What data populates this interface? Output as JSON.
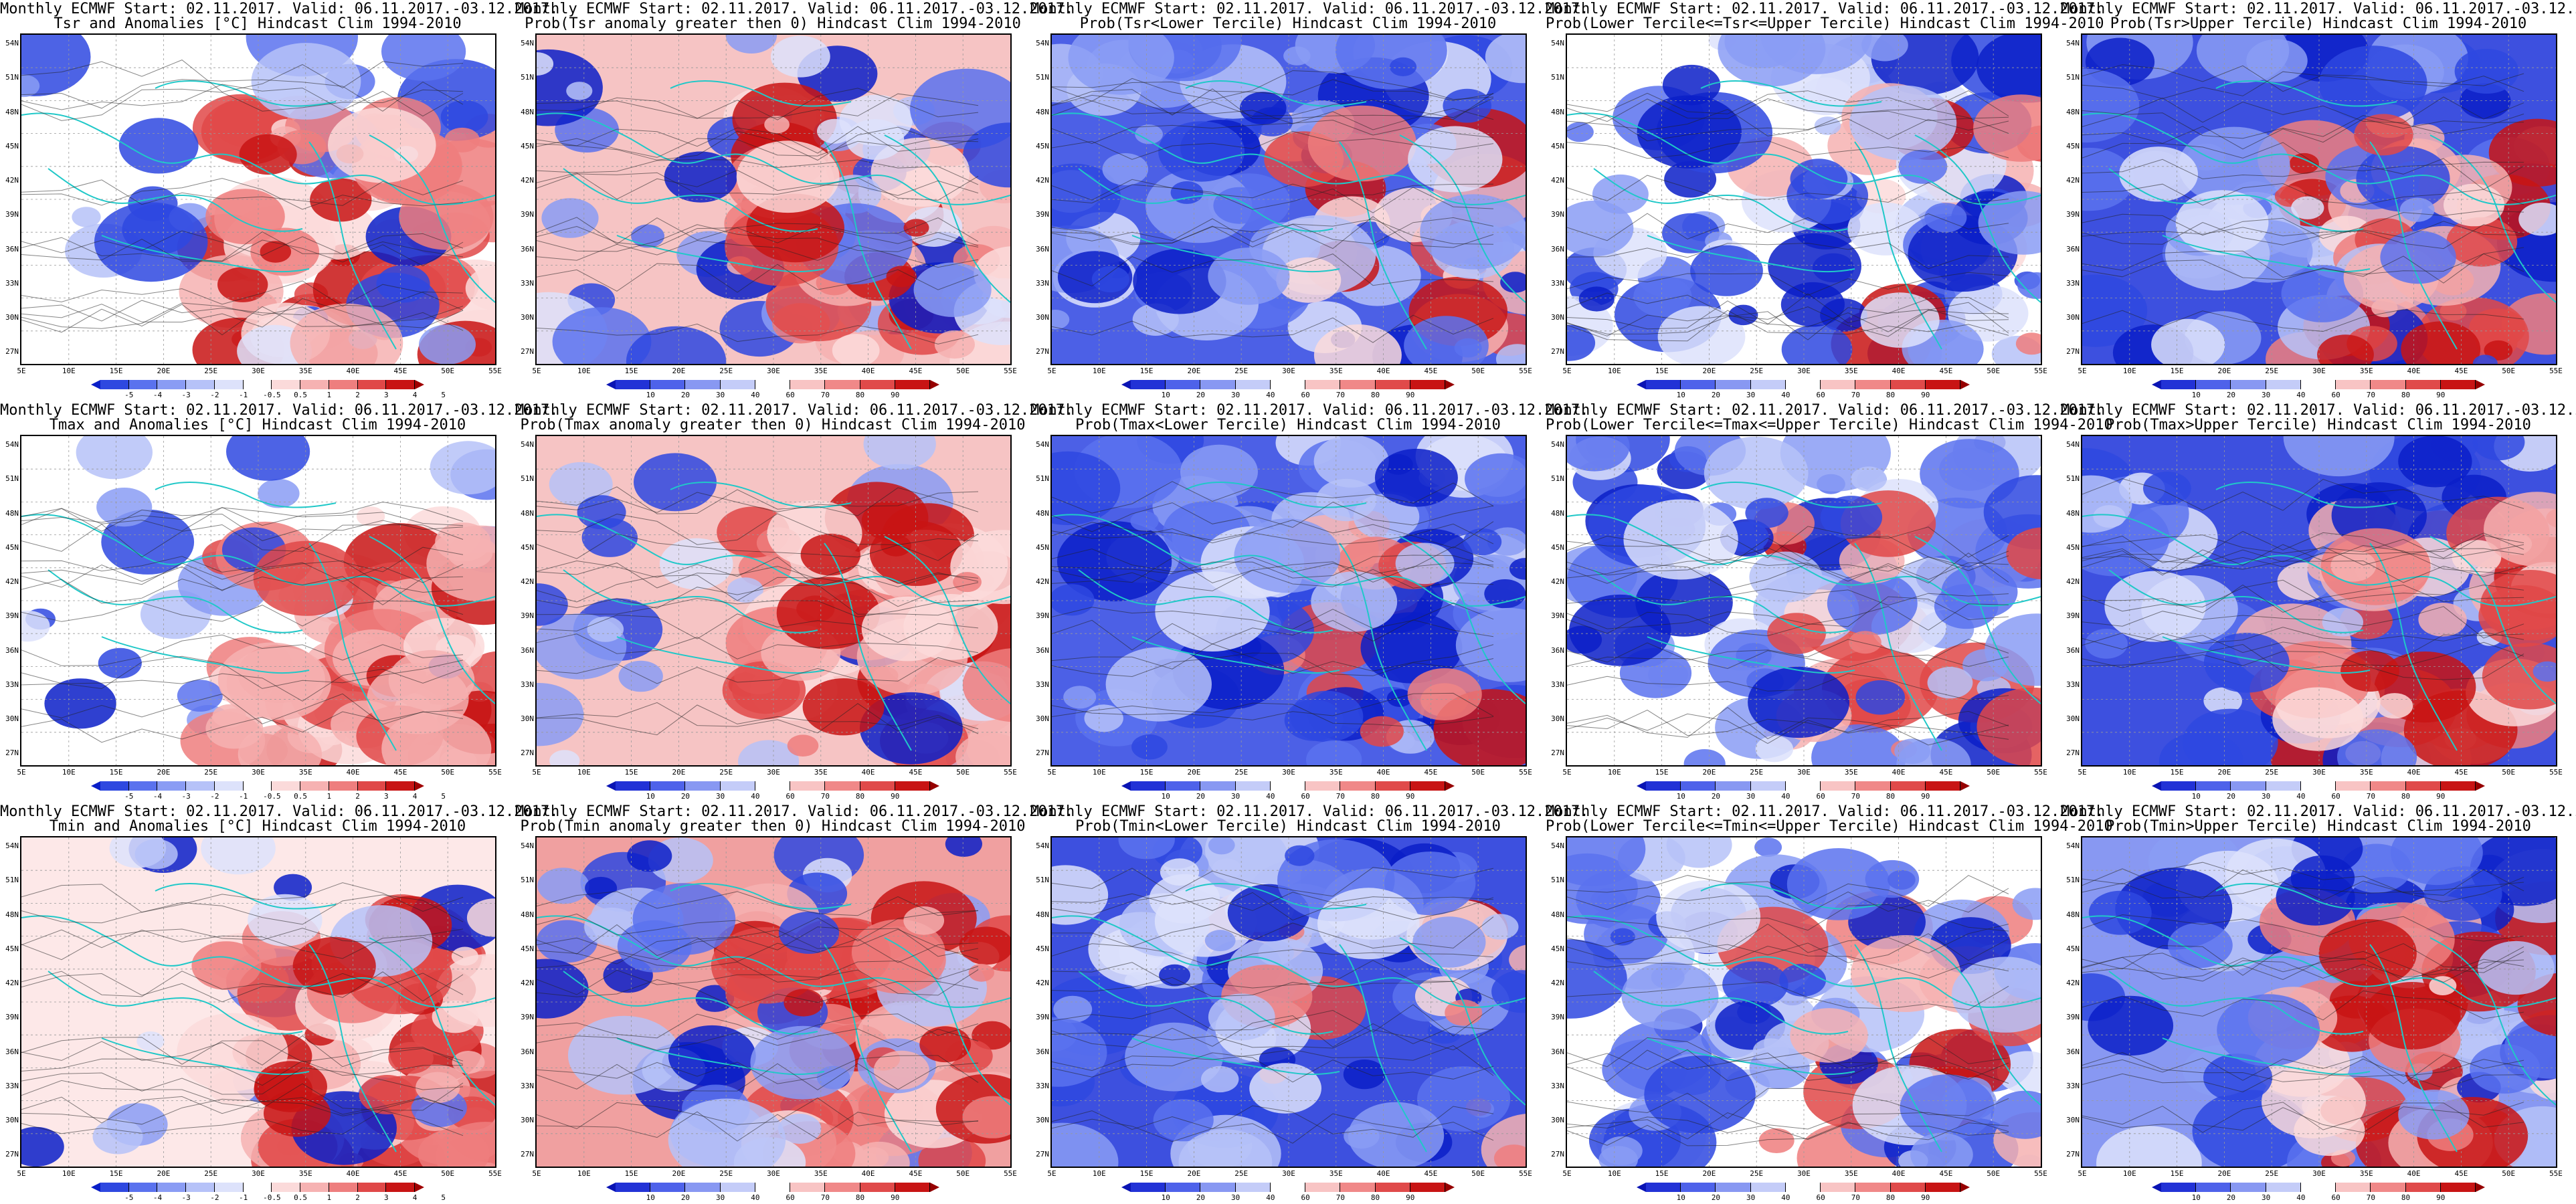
{
  "title_line1": "Monthly ECMWF Start: 02.11.2017. Valid: 06.11.2017.-03.12.2017.",
  "variables": [
    "Tsr",
    "Tmax",
    "Tmin"
  ],
  "row_titles": [
    [
      "Tsr and Anomalies [°C] Hindcast Clim 1994-2010",
      "Prob(Tsr anomaly greater then 0) Hindcast Clim 1994-2010",
      "Prob(Tsr<Lower Tercile) Hindcast Clim 1994-2010",
      "Prob(Lower Tercile<=Tsr<=Upper Tercile) Hindcast Clim 1994-2010",
      "Prob(Tsr>Upper Tercile) Hindcast Clim 1994-2010"
    ],
    [
      "Tmax and Anomalies [°C] Hindcast Clim 1994-2010",
      "Prob(Tmax anomaly greater then 0) Hindcast Clim 1994-2010",
      "Prob(Tmax<Lower Tercile) Hindcast Clim 1994-2010",
      "Prob(Lower Tercile<=Tmax<=Upper Tercile) Hindcast Clim 1994-2010",
      "Prob(Tmax>Upper Tercile) Hindcast Clim 1994-2010"
    ],
    [
      "Tmin and Anomalies [°C] Hindcast Clim 1994-2010",
      "Prob(Tmin anomaly greater then 0) Hindcast Clim 1994-2010",
      "Prob(Tmin<Lower Tercile) Hindcast Clim 1994-2010",
      "Prob(Lower Tercile<=Tmin<=Upper Tercile) Hindcast Clim 1994-2010",
      "Prob(Tmin>Upper Tercile) Hindcast Clim 1994-2010"
    ]
  ],
  "lat_labels": [
    "54N",
    "51N",
    "48N",
    "45N",
    "42N",
    "39N",
    "36N",
    "33N",
    "30N",
    "27N"
  ],
  "lon_labels": [
    "5E",
    "10E",
    "15E",
    "20E",
    "25E",
    "30E",
    "35E",
    "40E",
    "45E",
    "50E",
    "55E"
  ],
  "anomaly_colorbar": {
    "ticks": [
      "-5",
      "-4",
      "-3",
      "-2",
      "-1",
      "-0.5",
      "0.5",
      "1",
      "2",
      "3",
      "4",
      "5"
    ],
    "colors": [
      "#0a1fc8",
      "#2e48e0",
      "#5a72ee",
      "#8a9cf4",
      "#b6c2f8",
      "#dde2fb",
      "#ffffff",
      "#fbdada",
      "#f6b2b2",
      "#ee7e7e",
      "#e04848",
      "#c81414",
      "#a00000"
    ]
  },
  "probability_colorbar": {
    "ticks": [
      "10",
      "20",
      "30",
      "40",
      "60",
      "70",
      "80",
      "90"
    ],
    "colors": [
      "#0a14b4",
      "#2232d6",
      "#4e62ea",
      "#8898f2",
      "#c4ccf8",
      "#ffffff",
      "#f8c4c4",
      "#f08888",
      "#e04a4a",
      "#c81414",
      "#960000"
    ]
  },
  "panel_palette": {
    "row1": [
      {
        "bg": "#ffffff",
        "warm": 0.45,
        "cool": 0.15
      },
      {
        "bg": "#f6c4c4",
        "warm": 0.55,
        "cool": 0.25
      },
      {
        "bg": "#4c60e6",
        "warm": 0.15,
        "cool": 0.75
      },
      {
        "bg": "#ffffff",
        "warm": 0.1,
        "cool": 0.35
      },
      {
        "bg": "#3d50df",
        "warm": 0.3,
        "cool": 0.55
      }
    ],
    "row2": [
      {
        "bg": "#ffffff",
        "warm": 0.4,
        "cool": 0.15
      },
      {
        "bg": "#f6c4c4",
        "warm": 0.55,
        "cool": 0.25
      },
      {
        "bg": "#4c60e6",
        "warm": 0.15,
        "cool": 0.75
      },
      {
        "bg": "#ffffff",
        "warm": 0.1,
        "cool": 0.35
      },
      {
        "bg": "#3d50df",
        "warm": 0.3,
        "cool": 0.55
      }
    ],
    "row3": [
      {
        "bg": "#fde8e8",
        "warm": 0.45,
        "cool": 0.15
      },
      {
        "bg": "#f0a0a0",
        "warm": 0.6,
        "cool": 0.25
      },
      {
        "bg": "#3d50df",
        "warm": 0.15,
        "cool": 0.8
      },
      {
        "bg": "#ffffff",
        "warm": 0.1,
        "cool": 0.4
      },
      {
        "bg": "#8898f2",
        "warm": 0.35,
        "cool": 0.5
      }
    ]
  }
}
